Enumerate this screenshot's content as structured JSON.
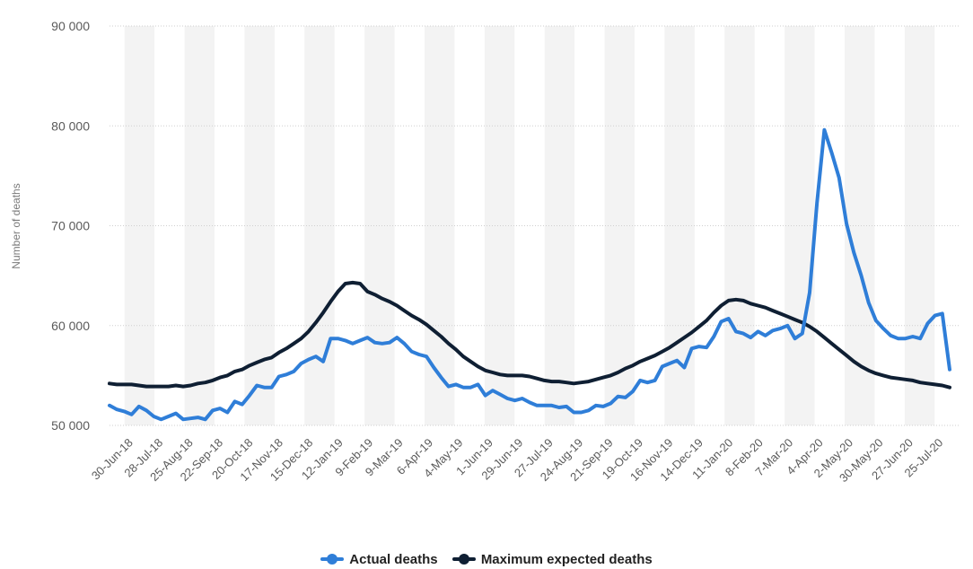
{
  "chart_data": {
    "type": "line",
    "title": "",
    "xlabel": "",
    "ylabel": "Number of deaths",
    "ylim": [
      50000,
      90000
    ],
    "yticks": [
      "50 000",
      "60 000",
      "70 000",
      "80 000",
      "90 000"
    ],
    "ytick_values": [
      50000,
      60000,
      70000,
      80000,
      90000
    ],
    "xtick_labels": [
      "30-Jun-18",
      "28-Jul-18",
      "25-Aug-18",
      "22-Sep-18",
      "20-Oct-18",
      "17-Nov-18",
      "15-Dec-18",
      "12-Jan-19",
      "9-Feb-19",
      "9-Mar-19",
      "6-Apr-19",
      "4-May-19",
      "1-Jun-19",
      "29-Jun-19",
      "27-Jul-19",
      "24-Aug-19",
      "21-Sep-19",
      "19-Oct-19",
      "16-Nov-19",
      "14-Dec-19",
      "11-Jan-20",
      "8-Feb-20",
      "7-Mar-20",
      "4-Apr-20",
      "2-May-20",
      "30-May-20",
      "27-Jun-20",
      "25-Jul-20"
    ],
    "grid": true,
    "legend_position": "bottom-center",
    "series": [
      {
        "name": "Actual deaths",
        "color": "#2f7ed8",
        "values": [
          52000,
          51600,
          51400,
          51100,
          51900,
          51500,
          50900,
          50600,
          50900,
          51200,
          50600,
          50700,
          50800,
          50600,
          51500,
          51700,
          51300,
          52400,
          52100,
          53000,
          54000,
          53800,
          53800,
          54900,
          55100,
          55400,
          56200,
          56600,
          56900,
          56400,
          58700,
          58700,
          58500,
          58200,
          58500,
          58800,
          58300,
          58200,
          58300,
          58800,
          58200,
          57400,
          57100,
          56900,
          55800,
          54800,
          53900,
          54100,
          53800,
          53800,
          54100,
          53000,
          53500,
          53100,
          52700,
          52500,
          52700,
          52300,
          52000,
          52000,
          52000,
          51800,
          51900,
          51300,
          51300,
          51500,
          52000,
          51900,
          52200,
          52900,
          52800,
          53400,
          54500,
          54300,
          54500,
          55900,
          56200,
          56500,
          55800,
          57700,
          57900,
          57800,
          58900,
          60400,
          60700,
          59400,
          59200,
          58800,
          59400,
          59000,
          59500,
          59700,
          60000,
          58700,
          59200,
          63300,
          72300,
          79600,
          77300,
          74800,
          70200,
          67300,
          65000,
          62300,
          60500,
          59700,
          59000,
          58700,
          58700,
          58900,
          58700,
          60200,
          61000,
          61200,
          55600
        ]
      },
      {
        "name": "Maximum expected deaths",
        "color": "#0f1f33",
        "values": [
          54200,
          54100,
          54100,
          54100,
          54000,
          53900,
          53900,
          53900,
          53900,
          54000,
          53900,
          54000,
          54200,
          54300,
          54500,
          54800,
          55000,
          55400,
          55600,
          56000,
          56300,
          56600,
          56800,
          57300,
          57700,
          58200,
          58700,
          59400,
          60300,
          61300,
          62400,
          63400,
          64200,
          64300,
          64200,
          63400,
          63100,
          62700,
          62400,
          62000,
          61500,
          61000,
          60600,
          60100,
          59500,
          58900,
          58200,
          57600,
          56900,
          56400,
          55900,
          55500,
          55300,
          55100,
          55000,
          55000,
          55000,
          54900,
          54700,
          54500,
          54400,
          54400,
          54300,
          54200,
          54300,
          54400,
          54600,
          54800,
          55000,
          55300,
          55700,
          56000,
          56400,
          56700,
          57000,
          57400,
          57800,
          58300,
          58800,
          59300,
          59900,
          60500,
          61300,
          62000,
          62500,
          62600,
          62500,
          62200,
          62000,
          61800,
          61500,
          61200,
          60900,
          60600,
          60300,
          59900,
          59400,
          58800,
          58200,
          57600,
          57000,
          56400,
          55900,
          55500,
          55200,
          55000,
          54800,
          54700,
          54600,
          54500,
          54300,
          54200,
          54100,
          54000,
          53800
        ]
      }
    ]
  }
}
